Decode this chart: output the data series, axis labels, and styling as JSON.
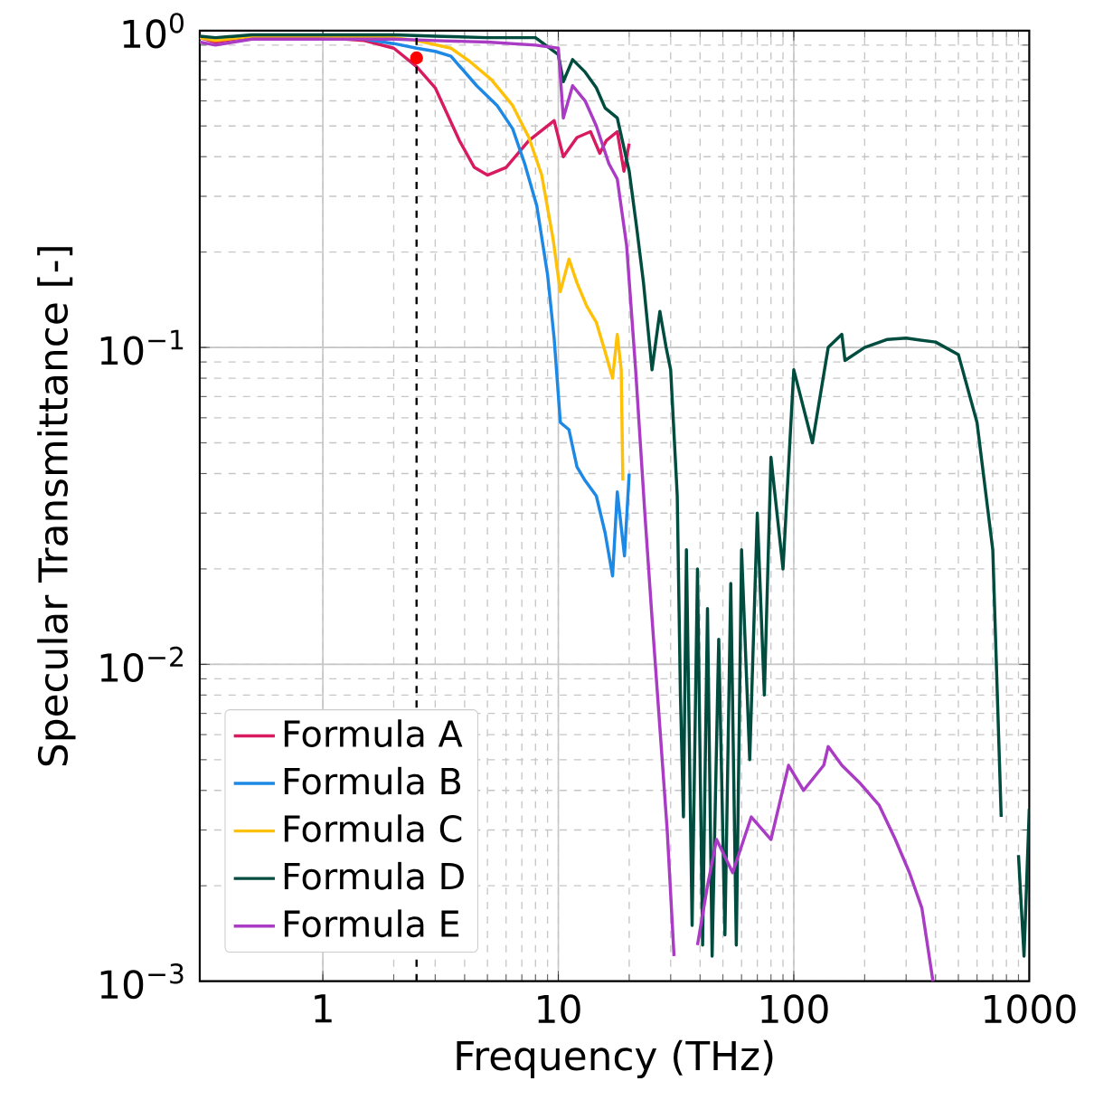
{
  "chart_data": {
    "type": "line",
    "xlabel": "Frequency (THz)",
    "ylabel": "Specular Transmittance [-]",
    "log": "xy",
    "grid": true,
    "legend": "bottom left",
    "xlim": [
      0.3,
      1000
    ],
    "ylim": [
      0.001,
      1
    ],
    "xticks": [
      1,
      10,
      100,
      1000
    ],
    "yticks": [
      {
        "value": 0.001,
        "label": "10$^{−3}$"
      },
      {
        "value": 0.01,
        "label": "10$^{−2}$"
      },
      {
        "value": 0.1,
        "label": "10$^{−1}$"
      },
      {
        "value": 1,
        "label": "10$^{0}$"
      }
    ],
    "ref_lines": [
      {
        "axis": "x",
        "value": 2.5,
        "color": "#000000",
        "line_style": "dashed"
      }
    ],
    "series": [
      {
        "name": "Formula A",
        "color": "#d81b60",
        "x": [
          0.3,
          0.35,
          0.5,
          1,
          1.5,
          2,
          2.5,
          3,
          3.8,
          4.4,
          5,
          6,
          7.5,
          9.6,
          10.5,
          12,
          13.7,
          15,
          16,
          17.8,
          19,
          20
        ],
        "values": [
          0.95,
          0.92,
          0.96,
          0.95,
          0.93,
          0.88,
          0.77,
          0.66,
          0.45,
          0.37,
          0.35,
          0.37,
          0.45,
          0.52,
          0.4,
          0.46,
          0.48,
          0.41,
          0.45,
          0.48,
          0.36,
          0.44
        ]
      },
      {
        "name": "Formula B",
        "color": "#1e88e5",
        "x": [
          1,
          1.5,
          2,
          2.5,
          3,
          3.5,
          4.5,
          5.5,
          6.4,
          7.2,
          8.1,
          9,
          9.6,
          10.2,
          11.1,
          12,
          13,
          14.5,
          15.8,
          17,
          17.8,
          19.1,
          20
        ],
        "values": [
          0.95,
          0.94,
          0.91,
          0.88,
          0.86,
          0.83,
          0.67,
          0.58,
          0.49,
          0.38,
          0.28,
          0.17,
          0.107,
          0.058,
          0.055,
          0.042,
          0.038,
          0.034,
          0.026,
          0.019,
          0.035,
          0.022,
          0.04
        ]
      },
      {
        "name": "Formula C",
        "color": "#ffc107",
        "x": [
          0.3,
          0.35,
          0.5,
          1,
          2,
          2.5,
          3.5,
          4.2,
          5.2,
          6.4,
          7.5,
          8.5,
          9.5,
          10.2,
          11.1,
          12,
          13.2,
          14.5,
          15.8,
          17,
          17.8,
          18.5,
          18.8
        ],
        "values": [
          0.95,
          0.93,
          0.96,
          0.96,
          0.95,
          0.93,
          0.88,
          0.8,
          0.7,
          0.58,
          0.46,
          0.35,
          0.22,
          0.15,
          0.19,
          0.16,
          0.135,
          0.12,
          0.097,
          0.08,
          0.11,
          0.085,
          0.038
        ]
      },
      {
        "name": "Formula D",
        "color": "#004d40",
        "x": [
          0.3,
          0.35,
          0.5,
          1,
          2,
          3,
          5,
          8,
          10,
          10.5,
          11.5,
          13,
          14.5,
          15.8,
          17.8,
          20,
          21.5,
          23,
          25,
          27,
          28.7,
          30,
          32,
          33,
          34,
          35,
          37,
          39,
          41,
          43,
          45,
          48,
          51,
          54,
          57,
          60,
          65,
          70,
          75,
          80,
          90,
          100,
          120,
          140,
          160,
          165,
          200,
          250,
          300,
          400,
          500,
          600,
          700,
          760,
          800,
          850,
          900,
          950,
          1000
        ],
        "values": [
          0.96,
          0.95,
          0.97,
          0.97,
          0.97,
          0.96,
          0.95,
          0.95,
          0.84,
          0.69,
          0.81,
          0.74,
          0.66,
          0.57,
          0.53,
          0.36,
          0.24,
          0.16,
          0.085,
          0.13,
          0.1,
          0.085,
          0.034,
          0.008,
          0.0033,
          0.023,
          0.0015,
          0.02,
          0.0013,
          0.015,
          0.0012,
          0.012,
          0.0014,
          0.018,
          0.0013,
          0.023,
          0.005,
          0.03,
          0.008,
          0.045,
          0.02,
          0.085,
          0.05,
          0.1,
          0.11,
          0.091,
          0.1,
          0.106,
          0.107,
          0.104,
          0.095,
          0.058,
          0.023,
          0.0033,
          null,
          null,
          0.0025,
          0.0012,
          0.0035
        ]
      },
      {
        "name": "Formula E",
        "color": "#aa3bc4",
        "x": [
          0.3,
          0.35,
          0.5,
          1,
          2,
          3,
          5,
          8,
          10,
          10.5,
          11.5,
          13,
          14.5,
          16.4,
          17.8,
          19.5,
          21.3,
          23.3,
          25,
          27,
          29,
          31,
          33,
          36,
          39,
          43,
          47,
          55,
          66,
          80,
          95,
          110,
          134,
          140,
          160,
          192,
          230,
          270,
          310,
          350,
          390
        ],
        "values": [
          0.92,
          0.9,
          0.94,
          0.94,
          0.94,
          0.93,
          0.92,
          0.9,
          0.88,
          0.53,
          0.67,
          0.6,
          0.5,
          0.38,
          0.34,
          0.21,
          0.085,
          0.03,
          0.014,
          0.0063,
          0.003,
          0.0012,
          null,
          null,
          0.0013,
          0.002,
          0.0028,
          0.0022,
          0.0033,
          0.0028,
          0.0048,
          0.004,
          0.0048,
          0.0055,
          0.0048,
          0.0042,
          0.0036,
          0.0028,
          0.0022,
          0.0017,
          0.001
        ]
      },
      {
        "type": "scatter",
        "marker": "circle",
        "color": "#ff0000",
        "x": [
          2.5
        ],
        "values": [
          0.82
        ]
      }
    ]
  }
}
